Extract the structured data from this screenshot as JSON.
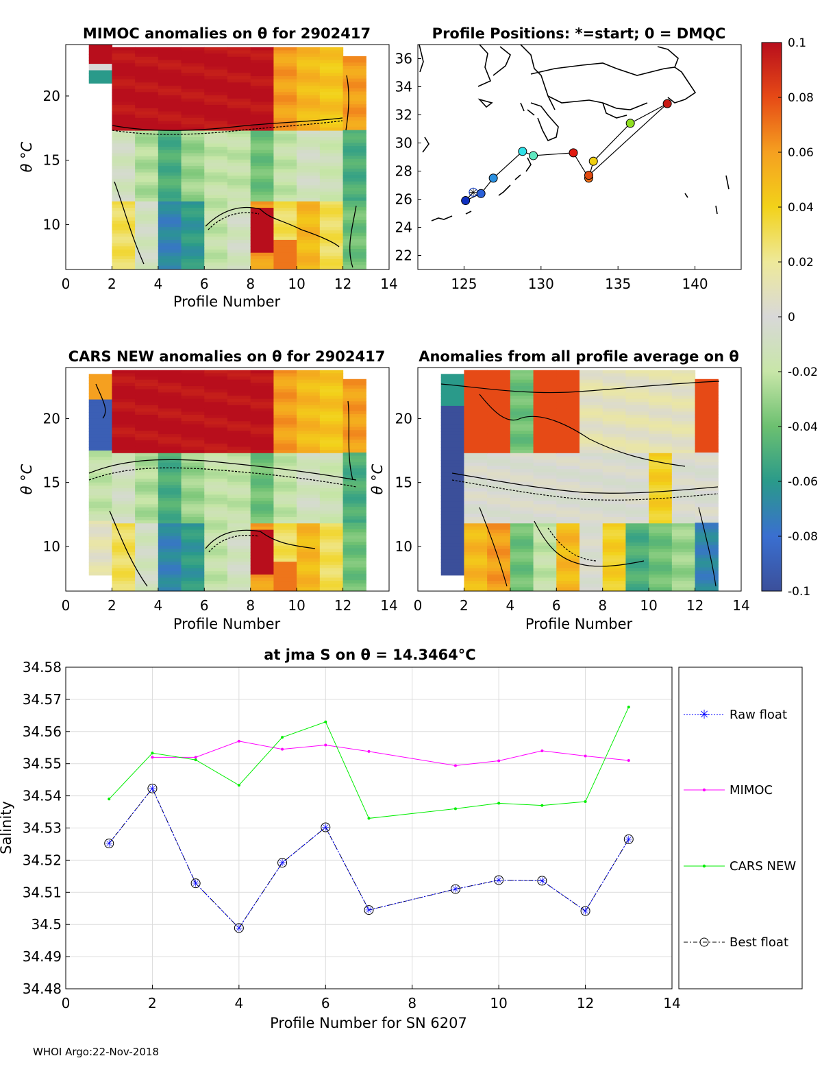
{
  "footer": "WHOI Argo:22-Nov-2018",
  "colorbar": {
    "tick_labels": [
      "0.1",
      "0.08",
      "0.06",
      "0.04",
      "0.02",
      "0",
      "-0.02",
      "-0.04",
      "-0.06",
      "-0.08",
      "-0.1"
    ],
    "range": [
      -0.1,
      0.1
    ]
  },
  "chart_data": [
    {
      "type": "heatmap",
      "title": "MIMOC anomalies on θ  for 2902417",
      "xlabel": "Profile Number",
      "ylabel": "θ °C",
      "xlim": [
        0,
        14
      ],
      "ylim": [
        6.5,
        24
      ],
      "x_tick_labels": [
        "0",
        "2",
        "4",
        "6",
        "8",
        "10",
        "12",
        "14"
      ],
      "y_tick_labels": [
        "10",
        "15",
        "20"
      ]
    },
    {
      "type": "scatter",
      "title": "Profile Positions: *=start; 0 = DMQC",
      "xlim": [
        122,
        143
      ],
      "ylim": [
        21,
        37
      ],
      "x_tick_labels": [
        "125",
        "130",
        "135",
        "140"
      ],
      "y_tick_labels": [
        "22",
        "24",
        "26",
        "28",
        "30",
        "32",
        "34",
        "36"
      ],
      "lon": [
        125.6,
        125.1,
        126.1,
        126.9,
        128.8,
        129.5,
        132.1,
        133.1,
        133.4,
        135.8,
        138.2,
        133.1
      ],
      "lat": [
        26.5,
        25.9,
        26.4,
        27.5,
        29.4,
        29.1,
        29.3,
        27.5,
        28.7,
        31.4,
        32.8,
        27.7
      ]
    },
    {
      "type": "heatmap",
      "title": "CARS NEW anomalies on θ for 2902417",
      "xlabel": "Profile Number",
      "ylabel": "θ °C",
      "xlim": [
        0,
        14
      ],
      "ylim": [
        6.5,
        24
      ],
      "x_tick_labels": [
        "0",
        "2",
        "4",
        "6",
        "8",
        "10",
        "12",
        "14"
      ],
      "y_tick_labels": [
        "10",
        "15",
        "20"
      ]
    },
    {
      "type": "heatmap",
      "title": "Anomalies from all profile average on θ",
      "xlabel": "Profile Number",
      "ylabel": "θ °C",
      "xlim": [
        0,
        14
      ],
      "ylim": [
        6.5,
        24
      ],
      "x_tick_labels": [
        "0",
        "2",
        "4",
        "6",
        "8",
        "10",
        "12",
        "14"
      ],
      "y_tick_labels": [
        "10",
        "15",
        "20"
      ]
    },
    {
      "type": "line",
      "title": "at jma S on θ = 14.3464°C",
      "xlabel": "Profile Number for SN 6207",
      "ylabel": "Salinity",
      "xlim": [
        0,
        14
      ],
      "ylim": [
        34.48,
        34.58
      ],
      "grid": true,
      "x_tick_labels": [
        "0",
        "2",
        "4",
        "6",
        "8",
        "10",
        "12",
        "14"
      ],
      "y_tick_labels": [
        "34.48",
        "34.49",
        "34.5",
        "34.51",
        "34.52",
        "34.53",
        "34.54",
        "34.55",
        "34.56",
        "34.57",
        "34.58"
      ],
      "legend": [
        "Raw float",
        "MIMOC",
        "CARS NEW",
        "Best float"
      ],
      "series": [
        {
          "name": "Raw float",
          "color": "#0000ff",
          "x": [
            1,
            2,
            3,
            4,
            5,
            6,
            7,
            9,
            10,
            11,
            12,
            13
          ],
          "y": [
            34.5252,
            34.5423,
            34.5128,
            34.4989,
            34.5192,
            34.5302,
            34.5045,
            34.511,
            34.5138,
            34.5136,
            34.5042,
            34.5265
          ]
        },
        {
          "name": "MIMOC",
          "color": "#ff00ff",
          "x": [
            2,
            3,
            4,
            5,
            6,
            7,
            9,
            10,
            11,
            12,
            13
          ],
          "y": [
            34.552,
            34.552,
            34.557,
            34.5545,
            34.5558,
            34.5538,
            34.5494,
            34.5509,
            34.554,
            34.5524,
            34.551
          ]
        },
        {
          "name": "CARS NEW",
          "color": "#00ee00",
          "x": [
            1,
            2,
            3,
            4,
            5,
            6,
            7,
            9,
            10,
            11,
            12,
            13
          ],
          "y": [
            34.539,
            34.5533,
            34.5512,
            34.5433,
            34.5582,
            34.563,
            34.533,
            34.536,
            34.5377,
            34.537,
            34.5382,
            34.5676
          ]
        },
        {
          "name": "Best float",
          "color": "#000000",
          "x": [
            1,
            2,
            3,
            4,
            5,
            6,
            7,
            9,
            10,
            11,
            12,
            13
          ],
          "y": [
            34.5252,
            34.5423,
            34.5128,
            34.4989,
            34.5192,
            34.5302,
            34.5045,
            34.511,
            34.5138,
            34.5136,
            34.5042,
            34.5265
          ]
        }
      ]
    }
  ]
}
